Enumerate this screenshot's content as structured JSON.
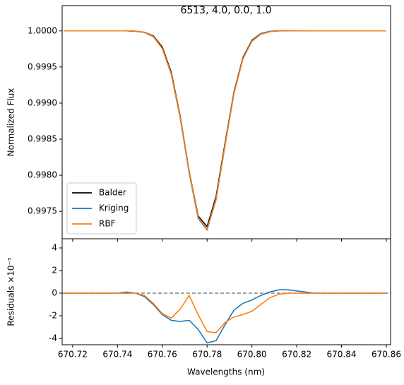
{
  "chart_data": [
    {
      "type": "line",
      "title": "6513, 4.0, 0.0, 1.0",
      "y_label": "Normalized Flux",
      "x": [
        670.716,
        670.72,
        670.724,
        670.728,
        670.732,
        670.736,
        670.74,
        670.744,
        670.748,
        670.752,
        670.756,
        670.76,
        670.764,
        670.768,
        670.772,
        670.776,
        670.78,
        670.784,
        670.788,
        670.792,
        670.796,
        670.8,
        670.804,
        670.808,
        670.812,
        670.816,
        670.82,
        670.824,
        670.828,
        670.832,
        670.836,
        670.84,
        670.844,
        670.848,
        670.852,
        670.856,
        670.86
      ],
      "series": [
        {
          "name": "Balder",
          "color": "#000000",
          "values": [
            1,
            1,
            1,
            1,
            1,
            1,
            1,
            1,
            0.999996,
            0.999982,
            0.99993,
            0.999776,
            0.999425,
            0.998818,
            0.998055,
            0.997435,
            0.997289,
            0.997704,
            0.998442,
            0.999153,
            0.99963,
            0.999871,
            0.999964,
            0.999992,
            1,
            1,
            1,
            1,
            1,
            1,
            1,
            1,
            1,
            1,
            1,
            1,
            1
          ]
        },
        {
          "name": "Kriging",
          "color": "#1f77b4",
          "values": [
            1,
            1,
            1,
            1,
            1,
            1,
            1,
            1.000001,
            0.999996,
            0.999979,
            0.99992,
            0.999757,
            0.999401,
            0.998793,
            0.998031,
            0.997403,
            0.997245,
            0.997662,
            0.998414,
            0.999138,
            0.999621,
            0.999865,
            0.999962,
            0.999993,
            1.000003,
            1.000003,
            1.000002,
            1.000001,
            1,
            1,
            1,
            1,
            1,
            1,
            1,
            1,
            1
          ]
        },
        {
          "name": "RBF",
          "color": "#ff7f0e",
          "values": [
            1,
            1,
            1,
            1,
            1,
            1,
            1,
            1,
            0.999996,
            0.99998,
            0.999921,
            0.999758,
            0.999403,
            0.998804,
            0.998053,
            0.997416,
            0.997255,
            0.997669,
            0.998416,
            0.999132,
            0.999611,
            0.999855,
            0.999954,
            0.999988,
            0.999999,
            1,
            1,
            1,
            1,
            1,
            1,
            1,
            1,
            1,
            1,
            1,
            1
          ]
        }
      ],
      "xlim": [
        670.7153,
        670.8619
      ],
      "xticks": [
        670.72,
        670.74,
        670.76,
        670.78,
        670.8,
        670.82,
        670.84,
        670.86
      ],
      "ylim": [
        0.99712,
        1.00035
      ],
      "yticks": [
        {
          "value": 0.9975,
          "label": "0.9975"
        },
        {
          "value": 0.998,
          "label": "0.9980"
        },
        {
          "value": 0.9985,
          "label": "0.9985"
        },
        {
          "value": 0.999,
          "label": "0.9990"
        },
        {
          "value": 0.9995,
          "label": "0.9995"
        },
        {
          "value": 1,
          "label": "1.0000"
        }
      ],
      "legend": "lower left"
    },
    {
      "type": "line",
      "x_label": "Wavelengths (nm)",
      "y_label": "Residuals ×10⁻⁵",
      "x": [
        670.716,
        670.72,
        670.724,
        670.728,
        670.732,
        670.736,
        670.74,
        670.744,
        670.748,
        670.752,
        670.756,
        670.76,
        670.764,
        670.768,
        670.772,
        670.776,
        670.78,
        670.784,
        670.788,
        670.792,
        670.796,
        670.8,
        670.804,
        670.808,
        670.812,
        670.816,
        670.82,
        670.824,
        670.828,
        670.832,
        670.836,
        670.84,
        670.844,
        670.848,
        670.852,
        670.856,
        670.86
      ],
      "series": [
        {
          "color": "#1f77b4",
          "values": [
            0,
            0,
            0,
            0,
            0,
            0,
            0,
            0.1,
            0,
            -0.3,
            -1.0,
            -1.9,
            -2.4,
            -2.5,
            -2.4,
            -3.2,
            -4.4,
            -4.2,
            -2.8,
            -1.5,
            -0.9,
            -0.6,
            -0.2,
            0.1,
            0.3,
            0.3,
            0.2,
            0.1,
            0,
            0,
            0,
            0,
            0,
            0,
            0,
            0,
            0
          ]
        },
        {
          "color": "#ff7f0e",
          "values": [
            0,
            0,
            0,
            0,
            0,
            0,
            0,
            0,
            0,
            -0.2,
            -0.9,
            -1.8,
            -2.2,
            -1.4,
            -0.2,
            -1.9,
            -3.4,
            -3.5,
            -2.6,
            -2.1,
            -1.9,
            -1.6,
            -1.0,
            -0.4,
            -0.1,
            0,
            0,
            0,
            0,
            0,
            0,
            0,
            0,
            0,
            0,
            0,
            0
          ]
        }
      ],
      "reference_line": 0,
      "reference_color": "#808080",
      "xlim": [
        670.7153,
        670.8619
      ],
      "xticks": [
        670.72,
        670.74,
        670.76,
        670.78,
        {
          "value": 670.8,
          "label": "670.80"
        },
        670.82,
        670.84,
        670.86
      ],
      "ylim": [
        -4.56,
        4.81
      ],
      "yticks": [
        -4,
        -2,
        0,
        2,
        4
      ]
    }
  ]
}
